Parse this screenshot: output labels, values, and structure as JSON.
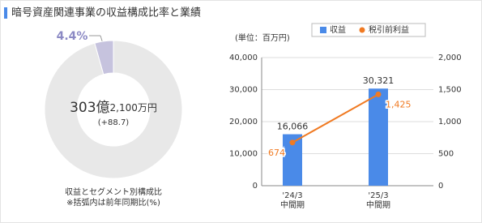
{
  "header": {
    "title": "暗号資産関連事業の収益構成比率と業績"
  },
  "chart_data": [
    {
      "type": "pie",
      "donut": true,
      "values": [
        4.4,
        95.6
      ],
      "value_labels": [
        "4.4%",
        null
      ],
      "colors": [
        "#c6c3de",
        "#e8e8e8"
      ],
      "label_color": "#8b89c4",
      "center_value_large": "303億",
      "center_value_small": "2,100万円",
      "center_change": "(+88.7)",
      "caption": "収益とセグメント別構成比",
      "note": "※括弧内は前年同期比(%)"
    },
    {
      "type": "bar",
      "unit_label": "(単位：百万円)",
      "legend": "top",
      "grid": true,
      "categories": [
        [
          "'24/3",
          "中間期"
        ],
        [
          "'25/3",
          "中間期"
        ]
      ],
      "series": [
        {
          "name": "収益",
          "type": "bar",
          "color": "#4a8ae8",
          "values": [
            16066,
            30321
          ],
          "value_labels": [
            "16,066",
            "30,321"
          ]
        },
        {
          "name": "税引前利益",
          "type": "line",
          "axis": "y2",
          "color": "#f07a22",
          "values": [
            674,
            1425
          ],
          "value_labels": [
            "674",
            "1,425"
          ]
        }
      ],
      "ylim": [
        0,
        40000
      ],
      "yticks": [
        0,
        {
          "value": 10000,
          "label": "10,000"
        },
        {
          "value": 20000,
          "label": "20,000"
        },
        {
          "value": 30000,
          "label": "30,000"
        },
        {
          "value": 40000,
          "label": "40,000"
        }
      ],
      "y2lim": [
        0,
        2000
      ],
      "y2ticks": [
        0,
        500,
        {
          "value": 1000,
          "label": "1,000"
        },
        {
          "value": 1500,
          "label": "1,500"
        },
        {
          "value": 2000,
          "label": "2,000"
        }
      ]
    }
  ]
}
